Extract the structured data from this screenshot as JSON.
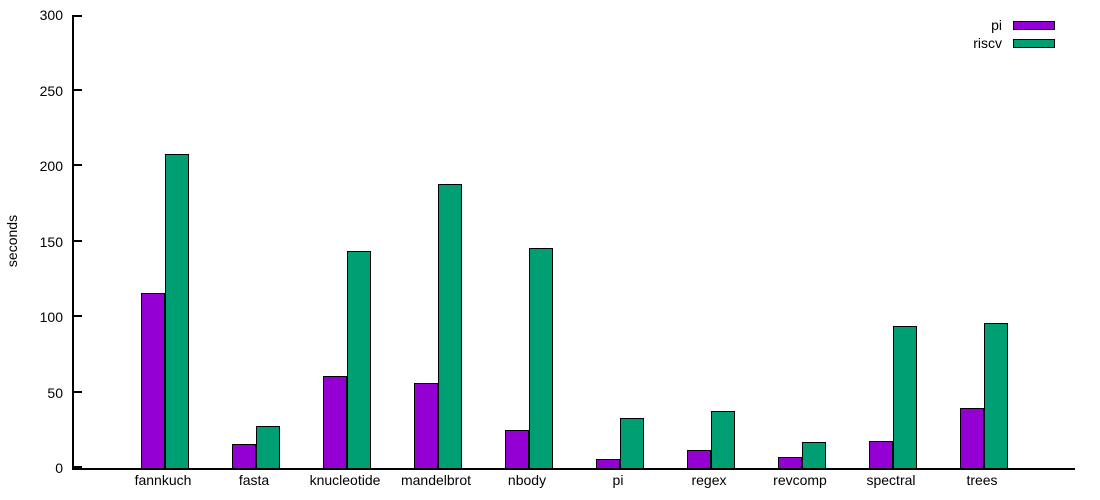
{
  "chart_data": {
    "type": "bar",
    "title": "",
    "xlabel": "",
    "ylabel": "seconds",
    "categories": [
      "fannkuch",
      "fasta",
      "knucleotide",
      "mandelbrot",
      "nbody",
      "pi",
      "regex",
      "revcomp",
      "spectral",
      "trees"
    ],
    "series": [
      {
        "name": "pi",
        "color": "#9400d3",
        "values": [
          116,
          16,
          61,
          56,
          25,
          6,
          12,
          7,
          18,
          40
        ]
      },
      {
        "name": "riscv",
        "color": "#009e73",
        "values": [
          208,
          28,
          144,
          188,
          146,
          33,
          38,
          17,
          94,
          96
        ]
      }
    ],
    "ylim": [
      0,
      300
    ],
    "yticks": [
      0,
      50,
      100,
      150,
      200,
      250,
      300
    ],
    "grid": false,
    "legend_position": "top-right",
    "bar_border_color": "#000000",
    "axis_color": "#000000",
    "background_color": "#ffffff"
  }
}
